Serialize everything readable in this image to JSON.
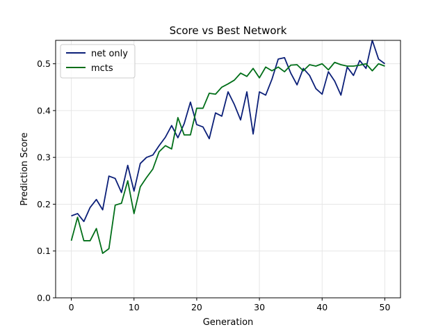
{
  "chart_data": {
    "type": "line",
    "title": "Score vs Best Network",
    "xlabel": "Generation",
    "ylabel": "Prediction Score",
    "xlim": [
      -2.5,
      52.5
    ],
    "ylim": [
      0.0,
      0.55
    ],
    "xticks": [
      0,
      10,
      20,
      30,
      40,
      50
    ],
    "xtick_labels": [
      "0",
      "10",
      "20",
      "30",
      "40",
      "50"
    ],
    "yticks": [
      0.0,
      0.1,
      0.2,
      0.3,
      0.4,
      0.5
    ],
    "ytick_labels": [
      "0.0",
      "0.1",
      "0.2",
      "0.3",
      "0.4",
      "0.5"
    ],
    "grid": true,
    "legend_position": "top-left",
    "x": [
      0,
      1,
      2,
      3,
      4,
      5,
      6,
      7,
      8,
      9,
      10,
      11,
      12,
      13,
      14,
      15,
      16,
      17,
      18,
      19,
      20,
      21,
      22,
      23,
      24,
      25,
      26,
      27,
      28,
      29,
      30,
      31,
      32,
      33,
      34,
      35,
      36,
      37,
      38,
      39,
      40,
      41,
      42,
      43,
      44,
      45,
      46,
      47,
      48,
      49,
      50
    ],
    "series": [
      {
        "name": "net only",
        "color": "#0b1f78",
        "values": [
          0.175,
          0.18,
          0.163,
          0.193,
          0.21,
          0.188,
          0.26,
          0.255,
          0.225,
          0.283,
          0.228,
          0.287,
          0.3,
          0.305,
          0.325,
          0.343,
          0.368,
          0.342,
          0.372,
          0.418,
          0.37,
          0.365,
          0.34,
          0.395,
          0.388,
          0.44,
          0.413,
          0.38,
          0.44,
          0.35,
          0.44,
          0.433,
          0.467,
          0.51,
          0.513,
          0.48,
          0.455,
          0.49,
          0.475,
          0.447,
          0.435,
          0.483,
          0.463,
          0.433,
          0.493,
          0.475,
          0.507,
          0.49,
          0.55,
          0.51,
          0.5
        ]
      },
      {
        "name": "mcts",
        "color": "#006e18",
        "values": [
          0.122,
          0.172,
          0.122,
          0.122,
          0.148,
          0.095,
          0.105,
          0.198,
          0.202,
          0.25,
          0.18,
          0.237,
          0.257,
          0.275,
          0.312,
          0.325,
          0.318,
          0.385,
          0.348,
          0.348,
          0.405,
          0.405,
          0.437,
          0.435,
          0.45,
          0.457,
          0.465,
          0.48,
          0.473,
          0.49,
          0.47,
          0.493,
          0.485,
          0.493,
          0.483,
          0.497,
          0.498,
          0.485,
          0.498,
          0.495,
          0.5,
          0.487,
          0.503,
          0.498,
          0.495,
          0.495,
          0.497,
          0.5,
          0.485,
          0.5,
          0.495
        ]
      }
    ]
  }
}
